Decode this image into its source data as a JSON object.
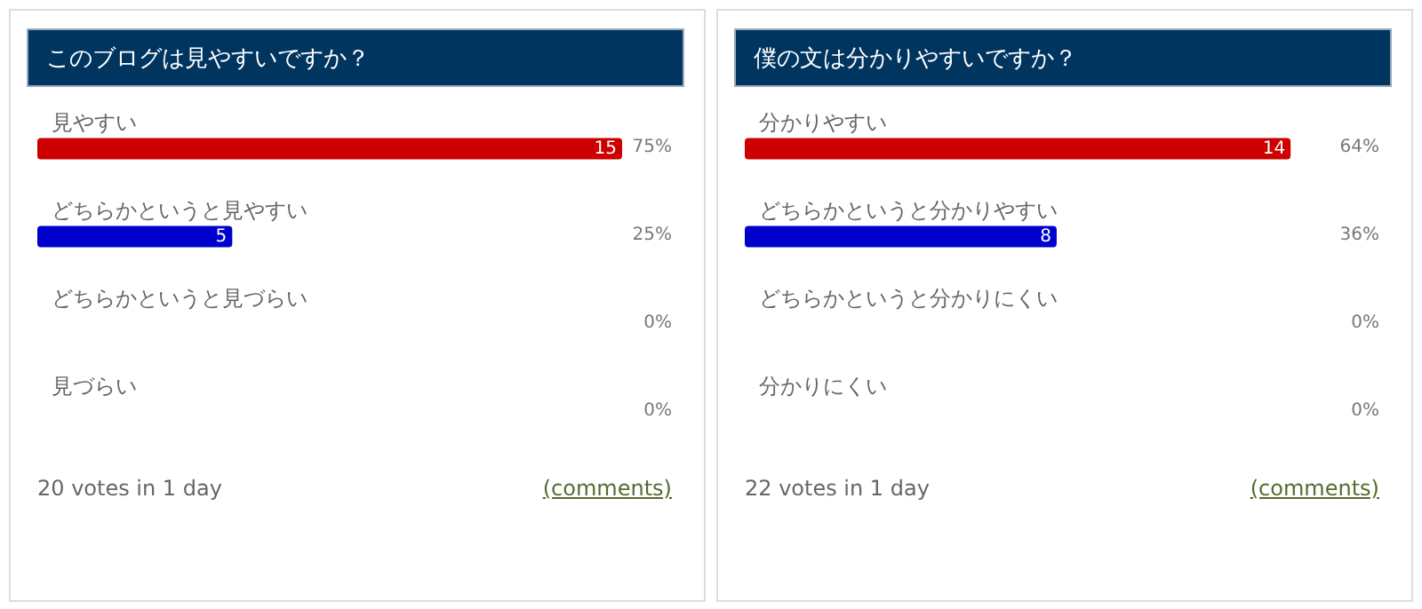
{
  "chart_data": [
    {
      "type": "bar",
      "orientation": "horizontal",
      "title": "このブログは見やすいですか？",
      "categories": [
        "見やすい",
        "どちらかというと見やすい",
        "どちらかというと見づらい",
        "見づらい"
      ],
      "values": [
        15,
        5,
        0,
        0
      ],
      "value_labels": [
        "15",
        "5",
        null,
        null
      ],
      "colors": [
        "#cc0000",
        "#0000cc",
        "#0a7a0a",
        "#d4a017"
      ],
      "tick_labels": "y",
      "annotations": [
        "75%",
        "25%",
        "0%",
        "0%",
        "20 votes in 1 day",
        "(comments)"
      ]
    },
    {
      "type": "bar",
      "orientation": "horizontal",
      "title": "僕の文は分かりやすいですか？",
      "categories": [
        "分かりやすい",
        "どちらかというと分かりやすい",
        "どちらかというと分かりにくい",
        "分かりにくい"
      ],
      "values": [
        14,
        8,
        0,
        0
      ],
      "value_labels": [
        "14",
        "8",
        null,
        null
      ],
      "colors": [
        "#cc0000",
        "#0000cc",
        "#0a7a0a",
        "#d4a017"
      ],
      "tick_labels": "y",
      "annotations": [
        "64%",
        "36%",
        "0%",
        "0%",
        "22 votes in 1 day",
        "(comments)"
      ]
    }
  ]
}
